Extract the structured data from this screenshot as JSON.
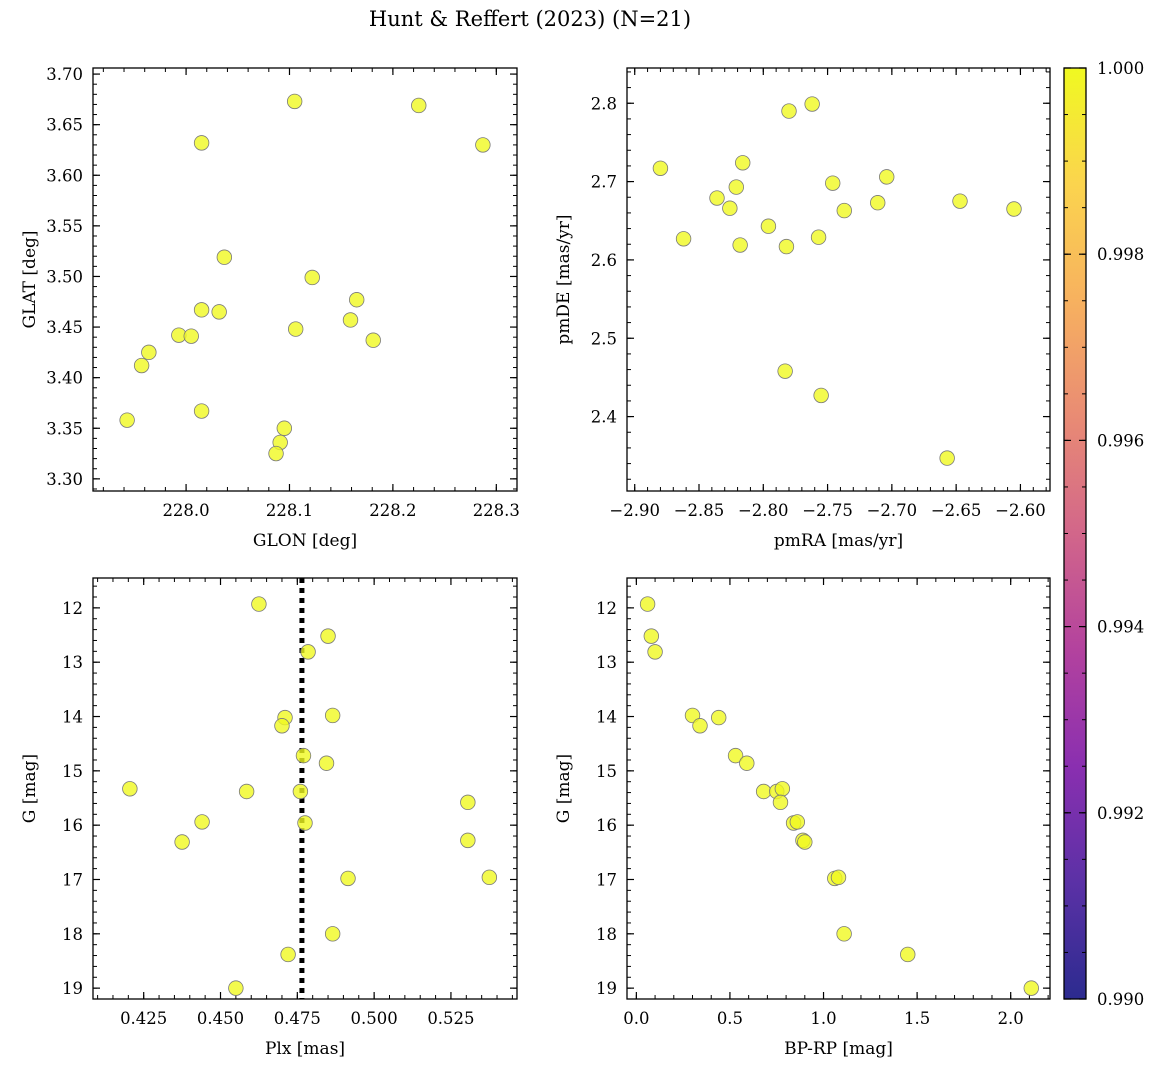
{
  "figure": {
    "title": "Hunt & Reffert (2023) (N=21)"
  },
  "colorbar": {
    "min": 0.99,
    "max": 1.0,
    "colormap": "plasma",
    "ticks": [
      "0.990",
      "0.992",
      "0.994",
      "0.996",
      "0.998",
      "1.000"
    ]
  },
  "marker": {
    "fill": "#f0f921",
    "stroke": "#7a7a7a",
    "opacity": 0.8,
    "membership_probability": 1.0
  },
  "chart_data": [
    {
      "id": "pos",
      "type": "scatter",
      "xlabel": "GLON [deg]",
      "ylabel": "GLAT [deg]",
      "xlim": [
        227.91,
        228.32
      ],
      "ylim": [
        3.288,
        3.706
      ],
      "invert_y": false,
      "xticks": [
        228.0,
        228.1,
        228.2,
        228.3
      ],
      "xtick_labels": [
        "228.0",
        "228.1",
        "228.2",
        "228.3"
      ],
      "xminor": 0.02,
      "yticks": [
        3.3,
        3.35,
        3.4,
        3.45,
        3.5,
        3.55,
        3.6,
        3.65,
        3.7
      ],
      "ytick_labels": [
        "3.30",
        "3.35",
        "3.40",
        "3.45",
        "3.50",
        "3.55",
        "3.60",
        "3.65",
        "3.70"
      ],
      "yminor": 0.01,
      "x": [
        228.105,
        228.225,
        228.015,
        228.287,
        228.037,
        228.122,
        228.165,
        228.015,
        228.032,
        228.159,
        228.106,
        228.181,
        227.993,
        228.005,
        227.964,
        227.957,
        228.015,
        227.943,
        228.095,
        228.091,
        228.087
      ],
      "y": [
        3.673,
        3.669,
        3.632,
        3.63,
        3.519,
        3.499,
        3.477,
        3.467,
        3.465,
        3.457,
        3.448,
        3.437,
        3.442,
        3.441,
        3.425,
        3.412,
        3.367,
        3.358,
        3.35,
        3.336,
        3.325
      ]
    },
    {
      "id": "pm",
      "type": "scatter",
      "xlabel": "pmRA [mas/yr]",
      "ylabel": "pmDE [mas/yr]",
      "xlim": [
        -2.906,
        -2.577
      ],
      "ylim": [
        2.305,
        2.845
      ],
      "invert_y": false,
      "xticks": [
        -2.9,
        -2.85,
        -2.8,
        -2.75,
        -2.7,
        -2.65,
        -2.6
      ],
      "xtick_labels": [
        "−2.90",
        "−2.85",
        "−2.80",
        "−2.75",
        "−2.70",
        "−2.65",
        "−2.60"
      ],
      "xminor": 0.01,
      "yticks": [
        2.4,
        2.5,
        2.6,
        2.7,
        2.8
      ],
      "ytick_labels": [
        "2.4",
        "2.5",
        "2.6",
        "2.7",
        "2.8"
      ],
      "yminor": 0.02,
      "x": [
        -2.88,
        -2.862,
        -2.836,
        -2.826,
        -2.821,
        -2.816,
        -2.818,
        -2.796,
        -2.782,
        -2.78,
        -2.762,
        -2.757,
        -2.746,
        -2.737,
        -2.711,
        -2.704,
        -2.647,
        -2.605,
        -2.783,
        -2.755,
        -2.657
      ],
      "y": [
        2.717,
        2.627,
        2.679,
        2.666,
        2.693,
        2.724,
        2.619,
        2.643,
        2.617,
        2.79,
        2.799,
        2.629,
        2.698,
        2.663,
        2.673,
        2.706,
        2.675,
        2.665,
        2.458,
        2.427,
        2.347
      ]
    },
    {
      "id": "plx",
      "type": "scatter",
      "xlabel": "Plx [mas]",
      "ylabel": "G [mag]",
      "xlim": [
        0.4085,
        0.5465
      ],
      "ylim": [
        11.45,
        19.2
      ],
      "invert_y": true,
      "xticks": [
        0.425,
        0.45,
        0.475,
        0.5,
        0.525
      ],
      "xtick_labels": [
        "0.425",
        "0.450",
        "0.475",
        "0.500",
        "0.525"
      ],
      "xminor": 0.005,
      "yticks": [
        12,
        13,
        14,
        15,
        16,
        17,
        18,
        19
      ],
      "ytick_labels": [
        "12",
        "13",
        "14",
        "15",
        "16",
        "17",
        "18",
        "19"
      ],
      "yminor": 0.2,
      "vline": 0.4765,
      "x": [
        0.4625,
        0.485,
        0.4785,
        0.471,
        0.4865,
        0.47,
        0.477,
        0.4845,
        0.4205,
        0.4585,
        0.476,
        0.5305,
        0.4775,
        0.444,
        0.4375,
        0.5305,
        0.4915,
        0.5375,
        0.4865,
        0.472,
        0.455
      ],
      "y": [
        11.93,
        12.52,
        12.81,
        14.02,
        13.98,
        14.17,
        14.72,
        14.86,
        15.33,
        15.38,
        15.38,
        15.58,
        15.96,
        15.94,
        16.31,
        16.28,
        16.98,
        16.96,
        18.0,
        18.38,
        19.0
      ]
    },
    {
      "id": "cmd",
      "type": "scatter",
      "xlabel": "BP-RP [mag]",
      "ylabel": "G [mag]",
      "xlim": [
        -0.05,
        2.21
      ],
      "ylim": [
        11.45,
        19.2
      ],
      "invert_y": true,
      "xticks": [
        0.0,
        0.5,
        1.0,
        1.5,
        2.0
      ],
      "xtick_labels": [
        "0.0",
        "0.5",
        "1.0",
        "1.5",
        "2.0"
      ],
      "xminor": 0.1,
      "yticks": [
        12,
        13,
        14,
        15,
        16,
        17,
        18,
        19
      ],
      "ytick_labels": [
        "12",
        "13",
        "14",
        "15",
        "16",
        "17",
        "18",
        "19"
      ],
      "yminor": 0.2,
      "x": [
        0.06,
        0.08,
        0.1,
        0.3,
        0.34,
        0.44,
        0.53,
        0.59,
        0.68,
        0.75,
        0.78,
        0.77,
        0.84,
        0.86,
        0.89,
        0.9,
        1.06,
        1.08,
        1.11,
        1.45,
        2.11
      ],
      "y": [
        11.93,
        12.52,
        12.81,
        13.98,
        14.17,
        14.02,
        14.72,
        14.86,
        15.38,
        15.38,
        15.33,
        15.58,
        15.96,
        15.94,
        16.28,
        16.31,
        16.98,
        16.96,
        18.0,
        18.38,
        19.0
      ]
    }
  ]
}
